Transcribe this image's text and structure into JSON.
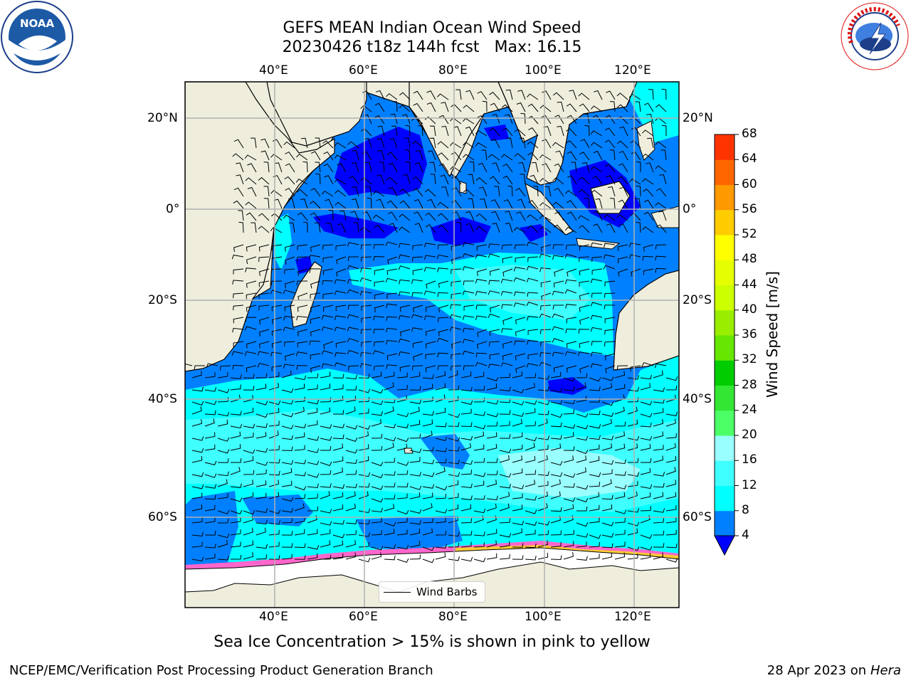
{
  "header": {
    "title_line1": "GEFS MEAN Indian Ocean Wind Speed",
    "title_line2_run": "20230426 t18z 144h fcst",
    "title_line2_max": "Max: 16.15"
  },
  "map": {
    "region": "Indian Ocean",
    "lon_ticks_top": [
      "40°E",
      "60°E",
      "80°E",
      "100°E",
      "120°E"
    ],
    "lon_ticks_bottom": [
      "40°E",
      "60°E",
      "80°E",
      "100°E",
      "120°E"
    ],
    "lat_ticks_left": [
      "20°N",
      "0°",
      "20°S",
      "40°S",
      "60°S"
    ],
    "lat_ticks_right": [
      "20°N",
      "0°",
      "20°S",
      "40°S",
      "60°S"
    ],
    "legend_label": "Wind Barbs",
    "colors": {
      "land": "#efeedd",
      "ice": "#ffffff",
      "ice_edge": "#ff66cc"
    }
  },
  "colorbar": {
    "label": "Wind Speed [m/s]",
    "ticks": [
      "4",
      "8",
      "12",
      "16",
      "20",
      "24",
      "28",
      "32",
      "36",
      "40",
      "44",
      "48",
      "52",
      "56",
      "60",
      "64",
      "68"
    ],
    "bin_colors": [
      "#0080ff",
      "#00ffff",
      "#40ffff",
      "#99ffff",
      "#4cff66",
      "#33e633",
      "#00cc00",
      "#66e600",
      "#99ee00",
      "#ccff00",
      "#e6ff00",
      "#ffff00",
      "#ffcc00",
      "#ff9900",
      "#ff6600",
      "#ff3300"
    ],
    "under_color": "#0000ff"
  },
  "footer": {
    "note": "Sea Ice Concentration > 15% is shown in pink to yellow",
    "branch": "NCEP/EMC/Verification Post Processing Product Generation Branch",
    "date": "28 Apr 2023 on",
    "host": "Hera"
  },
  "logos": {
    "noaa_text": "NOAA",
    "nws_text": "NATIONAL WEATHER SERVICE"
  }
}
